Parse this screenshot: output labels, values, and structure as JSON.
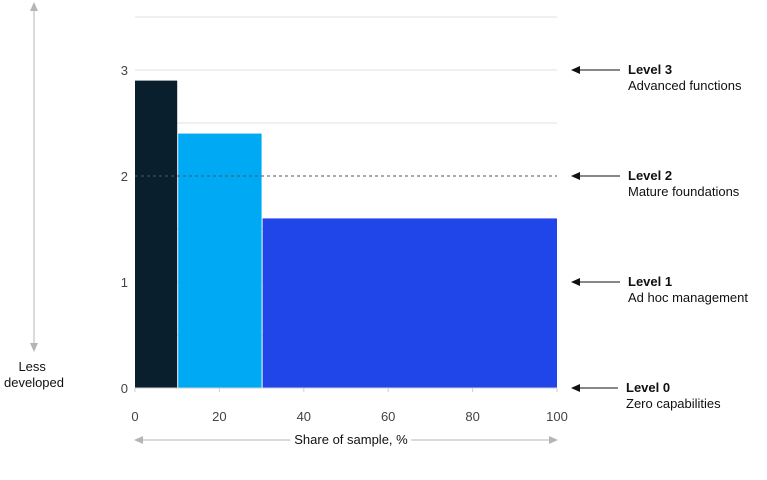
{
  "chart_data": {
    "type": "bar",
    "title": "",
    "xlabel": "Share of sample, %",
    "ylabel": "",
    "y_axis_note": "Less developed",
    "xlim": [
      0,
      100
    ],
    "ylim": [
      0,
      3
    ],
    "x_ticks": [
      0,
      20,
      40,
      60,
      80,
      100
    ],
    "y_ticks": [
      0,
      1,
      2,
      3
    ],
    "grid": true,
    "bars": [
      {
        "x_start": 0,
        "x_end": 10,
        "value": 2.9,
        "color": "#0a1f2e"
      },
      {
        "x_start": 10,
        "x_end": 30,
        "value": 2.4,
        "color": "#00a9f4"
      },
      {
        "x_start": 30,
        "x_end": 100,
        "value": 1.6,
        "color": "#2045e8"
      }
    ],
    "reference_lines": [
      {
        "y": 2,
        "style": "dashed"
      }
    ],
    "levels": [
      {
        "y": 3,
        "title": "Level 3",
        "subtitle": "Advanced functions"
      },
      {
        "y": 2,
        "title": "Level 2",
        "subtitle": "Mature foundations"
      },
      {
        "y": 1,
        "title": "Level 1",
        "subtitle": "Ad hoc management"
      },
      {
        "y": 0,
        "title": "Level 0",
        "subtitle": "Zero capabilities"
      }
    ]
  }
}
